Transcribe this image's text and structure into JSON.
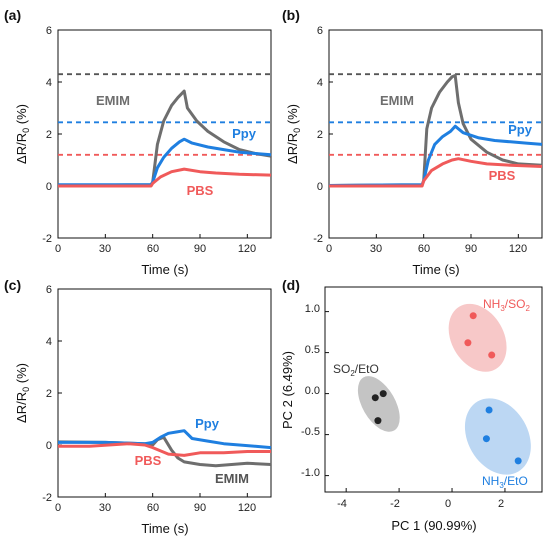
{
  "chart_data": [
    {
      "panel": "(a)",
      "type": "line",
      "xlabel": "Time (s)",
      "ylabel": "ΔR/R0 (%)",
      "xlim": [
        0,
        135
      ],
      "ylim": [
        -2,
        6
      ],
      "xticks": [
        "0",
        "30",
        "60",
        "90",
        "120"
      ],
      "yticks": [
        "-2",
        "0",
        "2",
        "4",
        "6"
      ],
      "hlines": [
        {
          "y": 4.3,
          "color": "#555555"
        },
        {
          "y": 2.45,
          "color": "#1f7fe0"
        },
        {
          "y": 1.2,
          "color": "#f05a5a"
        }
      ],
      "series": [
        {
          "name": "EMIM",
          "color": "#6e6e6e",
          "x": [
            0,
            59,
            60,
            63,
            67,
            72,
            76,
            80,
            82,
            88,
            95,
            105,
            115,
            125,
            135
          ],
          "y": [
            0.02,
            0.05,
            0.15,
            1.6,
            2.5,
            3.1,
            3.4,
            3.65,
            3.0,
            2.5,
            2.1,
            1.7,
            1.4,
            1.25,
            1.15
          ]
        },
        {
          "name": "Ppy",
          "color": "#1f7fe0",
          "x": [
            0,
            59,
            60,
            63,
            67,
            72,
            77,
            80,
            85,
            95,
            105,
            115,
            125,
            135
          ],
          "y": [
            0.05,
            0.05,
            0.15,
            0.7,
            1.1,
            1.45,
            1.7,
            1.8,
            1.65,
            1.5,
            1.4,
            1.3,
            1.25,
            1.2
          ]
        },
        {
          "name": "PBS",
          "color": "#f05a5a",
          "x": [
            0,
            59,
            60,
            65,
            72,
            80,
            90,
            100,
            115,
            135
          ],
          "y": [
            0.0,
            0.0,
            0.1,
            0.35,
            0.55,
            0.65,
            0.55,
            0.5,
            0.45,
            0.42
          ]
        }
      ],
      "annotations": [
        "EMIM",
        "Ppy",
        "PBS"
      ]
    },
    {
      "panel": "(b)",
      "type": "line",
      "xlabel": "Time (s)",
      "ylabel": "ΔR/R0 (%)",
      "xlim": [
        0,
        135
      ],
      "ylim": [
        -2,
        6
      ],
      "xticks": [
        "0",
        "30",
        "60",
        "90",
        "120"
      ],
      "yticks": [
        "-2",
        "0",
        "2",
        "4",
        "6"
      ],
      "hlines": [
        {
          "y": 4.3,
          "color": "#555555"
        },
        {
          "y": 2.45,
          "color": "#1f7fe0"
        },
        {
          "y": 1.2,
          "color": "#f05a5a"
        }
      ],
      "series": [
        {
          "name": "EMIM",
          "color": "#6e6e6e",
          "x": [
            0,
            59,
            60,
            62,
            65,
            70,
            75,
            78,
            80,
            82,
            85,
            90,
            100,
            110,
            120,
            135
          ],
          "y": [
            0.02,
            0.05,
            0.2,
            2.2,
            3.0,
            3.6,
            4.0,
            4.2,
            4.25,
            3.2,
            2.4,
            1.8,
            1.3,
            1.0,
            0.85,
            0.8
          ]
        },
        {
          "name": "Ppy",
          "color": "#1f7fe0",
          "x": [
            0,
            59,
            60,
            63,
            67,
            72,
            77,
            80,
            85,
            95,
            105,
            115,
            125,
            135
          ],
          "y": [
            0.02,
            0.05,
            0.2,
            1.0,
            1.6,
            1.9,
            2.1,
            2.3,
            2.05,
            1.85,
            1.75,
            1.7,
            1.65,
            1.6
          ]
        },
        {
          "name": "PBS",
          "color": "#f05a5a",
          "x": [
            0,
            59,
            60,
            65,
            72,
            78,
            82,
            90,
            100,
            115,
            135
          ],
          "y": [
            0.0,
            0.0,
            0.2,
            0.6,
            0.85,
            1.0,
            1.05,
            0.95,
            0.85,
            0.8,
            0.75
          ]
        }
      ],
      "annotations": [
        "EMIM",
        "Ppy",
        "PBS"
      ]
    },
    {
      "panel": "(c)",
      "type": "line",
      "xlabel": "Time (s)",
      "ylabel": "ΔR/R0 (%)",
      "xlim": [
        0,
        135
      ],
      "ylim": [
        -2,
        6
      ],
      "xticks": [
        "0",
        "30",
        "60",
        "90",
        "120"
      ],
      "yticks": [
        "-2",
        "0",
        "2",
        "4",
        "6"
      ],
      "series": [
        {
          "name": "EMIM",
          "color": "#6e6e6e",
          "x": [
            0,
            30,
            55,
            60,
            63,
            67,
            72,
            76,
            80,
            90,
            100,
            110,
            120,
            135
          ],
          "y": [
            0.12,
            0.1,
            0.05,
            0.0,
            0.2,
            0.3,
            -0.2,
            -0.5,
            -0.65,
            -0.75,
            -0.8,
            -0.75,
            -0.7,
            -0.75
          ]
        },
        {
          "name": "Ppy",
          "color": "#1f7fe0",
          "x": [
            0,
            30,
            55,
            60,
            65,
            70,
            75,
            80,
            85,
            95,
            105,
            115,
            125,
            135
          ],
          "y": [
            0.1,
            0.1,
            0.05,
            0.1,
            0.3,
            0.45,
            0.5,
            0.55,
            0.25,
            0.15,
            0.05,
            0.0,
            -0.05,
            -0.1
          ]
        },
        {
          "name": "PBS",
          "color": "#f05a5a",
          "x": [
            0,
            20,
            45,
            55,
            60,
            70,
            80,
            90,
            105,
            120,
            135
          ],
          "y": [
            -0.05,
            -0.05,
            0.05,
            0.0,
            -0.1,
            -0.35,
            -0.4,
            -0.3,
            -0.3,
            -0.25,
            -0.25
          ]
        }
      ],
      "annotations": [
        "Ppy",
        "PBS",
        "EMIM"
      ]
    },
    {
      "panel": "(d)",
      "type": "scatter",
      "xlabel": "PC 1 (90.99%)",
      "ylabel": "PC 2 (6.49%)",
      "xlim": [
        -4.8,
        3.4
      ],
      "ylim": [
        -1.2,
        1.3
      ],
      "xticks": [
        "-4",
        "-2",
        "0",
        "2"
      ],
      "yticks": [
        "1.0",
        "0.5",
        "0.0",
        "-0.5",
        "-1.0"
      ],
      "groups": [
        {
          "name": "NH3/SO2",
          "color": "#f05a5a",
          "ellipse_fill": "#f7c8c8",
          "points": [
            [
              0.8,
              0.95
            ],
            [
              0.6,
              0.62
            ],
            [
              1.5,
              0.47
            ]
          ]
        },
        {
          "name": "SO2/EtO",
          "color": "#222222",
          "ellipse_fill": "#c4c4c4",
          "points": [
            [
              -2.6,
              0.0
            ],
            [
              -2.9,
              -0.05
            ],
            [
              -2.8,
              -0.33
            ]
          ]
        },
        {
          "name": "NH3/EtO",
          "color": "#1f7fe0",
          "ellipse_fill": "#bcd7f3",
          "points": [
            [
              1.4,
              -0.2
            ],
            [
              1.3,
              -0.55
            ],
            [
              2.5,
              -0.82
            ]
          ]
        }
      ]
    }
  ]
}
